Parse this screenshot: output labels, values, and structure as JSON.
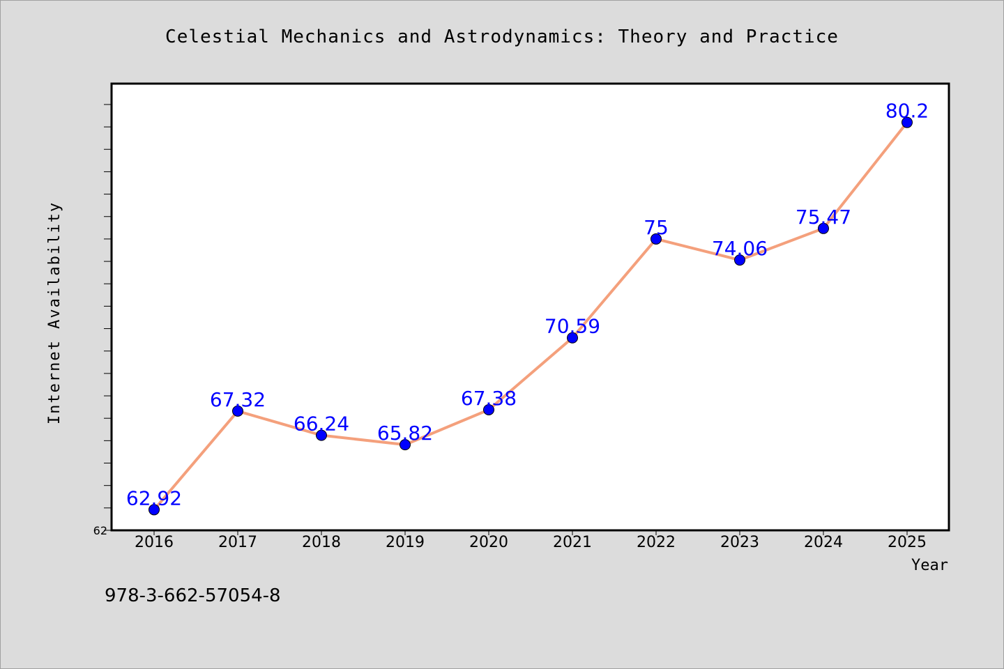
{
  "chart_data": {
    "type": "line",
    "title": "Celestial Mechanics and Astrodynamics: Theory and Practice",
    "xlabel": "Year",
    "ylabel": "Internet Availability",
    "categories": [
      "2016",
      "2017",
      "2018",
      "2019",
      "2020",
      "2021",
      "2022",
      "2023",
      "2024",
      "2025"
    ],
    "series": [
      {
        "values": [
          62.92,
          67.32,
          66.24,
          65.82,
          67.38,
          70.59,
          75,
          74.06,
          75.47,
          80.2
        ],
        "value_labels": [
          "62.92",
          "67.32",
          "66.24",
          "65.82",
          "67.38",
          "70.59",
          "75",
          "74.06",
          "75.47",
          "80.2"
        ],
        "line_color": "#f4a07c",
        "marker_color": "#0000ff",
        "label_color": "#0000ff"
      }
    ],
    "ylim": [
      62,
      81.9
    ],
    "y_tick_labels": [
      "62"
    ],
    "y_minor_tick_step": 1,
    "grid": false,
    "annotation": "978-3-662-57054-8"
  }
}
